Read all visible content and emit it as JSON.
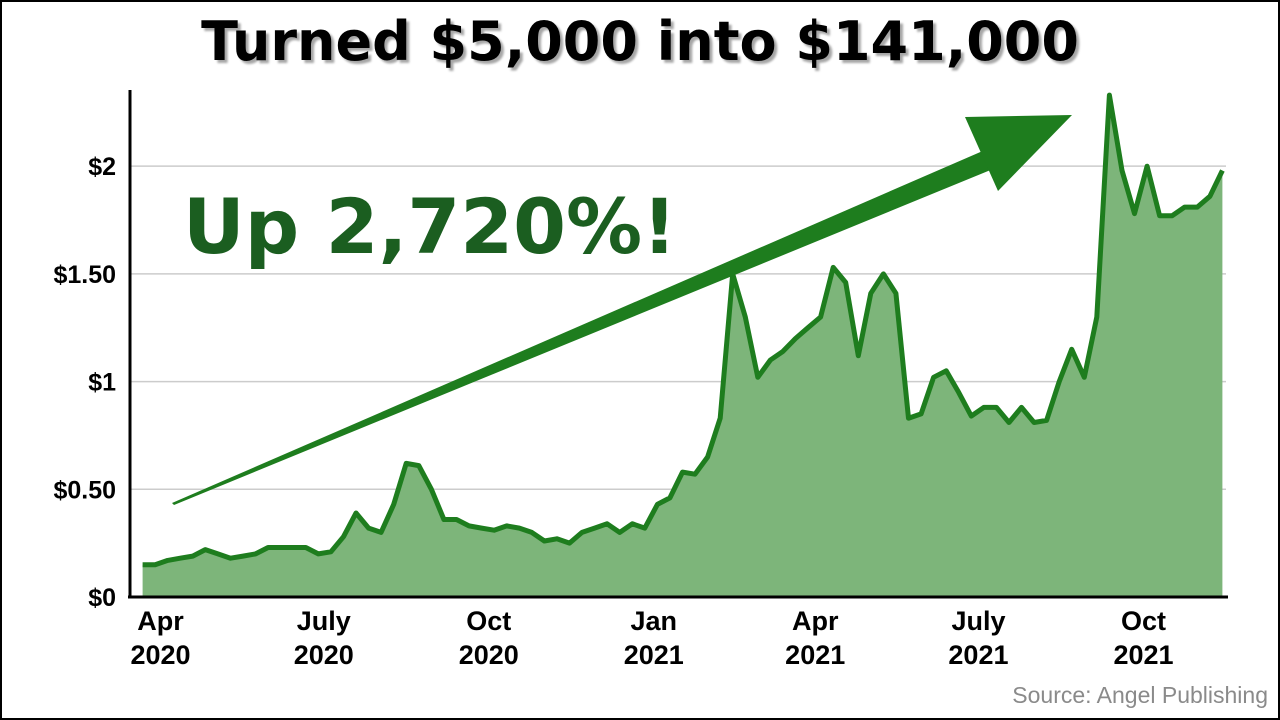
{
  "title": "Turned $5,000 into $141,000",
  "callout": "Up 2,720%!",
  "source": "Source: Angel Publishing",
  "colors": {
    "line": "#1e7d1e",
    "fill": "#7db57a",
    "arrow": "#1e7d1e",
    "callout": "#1b5e20",
    "grid": "#cccccc"
  },
  "chart_data": {
    "type": "area",
    "title": "Turned $5,000 into $141,000",
    "xlabel": "",
    "ylabel": "",
    "grid": true,
    "ylim": [
      0,
      2.4
    ],
    "y_ticks": [
      {
        "value": 0,
        "label": "$0"
      },
      {
        "value": 0.5,
        "label": "$0.50"
      },
      {
        "value": 1,
        "label": "$1"
      },
      {
        "value": 1.5,
        "label": "$1.50"
      },
      {
        "value": 2,
        "label": "$2"
      }
    ],
    "x_ticks": [
      {
        "date": "2020-04-01",
        "line1": "Apr",
        "line2": "2020"
      },
      {
        "date": "2020-07-01",
        "line1": "July",
        "line2": "2020"
      },
      {
        "date": "2020-10-01",
        "line1": "Oct",
        "line2": "2020"
      },
      {
        "date": "2021-01-01",
        "line1": "Jan",
        "line2": "2021"
      },
      {
        "date": "2021-04-01",
        "line1": "Apr",
        "line2": "2021"
      },
      {
        "date": "2021-07-01",
        "line1": "July",
        "line2": "2021"
      },
      {
        "date": "2021-10-01",
        "line1": "Oct",
        "line2": "2021"
      }
    ],
    "x": [
      "2020-03-22",
      "2020-03-29",
      "2020-04-05",
      "2020-04-12",
      "2020-04-19",
      "2020-04-26",
      "2020-05-03",
      "2020-05-10",
      "2020-05-17",
      "2020-05-24",
      "2020-05-31",
      "2020-06-07",
      "2020-06-14",
      "2020-06-21",
      "2020-06-28",
      "2020-07-05",
      "2020-07-12",
      "2020-07-19",
      "2020-07-26",
      "2020-08-02",
      "2020-08-09",
      "2020-08-16",
      "2020-08-23",
      "2020-08-30",
      "2020-09-06",
      "2020-09-13",
      "2020-09-20",
      "2020-09-27",
      "2020-10-04",
      "2020-10-11",
      "2020-10-18",
      "2020-10-25",
      "2020-11-01",
      "2020-11-08",
      "2020-11-15",
      "2020-11-22",
      "2020-11-29",
      "2020-12-06",
      "2020-12-13",
      "2020-12-20",
      "2020-12-27",
      "2021-01-03",
      "2021-01-10",
      "2021-01-17",
      "2021-01-24",
      "2021-01-31",
      "2021-02-07",
      "2021-02-14",
      "2021-02-21",
      "2021-02-28",
      "2021-03-07",
      "2021-03-14",
      "2021-03-21",
      "2021-03-28",
      "2021-04-04",
      "2021-04-11",
      "2021-04-18",
      "2021-04-25",
      "2021-05-02",
      "2021-05-09",
      "2021-05-16",
      "2021-05-23",
      "2021-05-30",
      "2021-06-06",
      "2021-06-13",
      "2021-06-20",
      "2021-06-27",
      "2021-07-04",
      "2021-07-11",
      "2021-07-18",
      "2021-07-25",
      "2021-08-01",
      "2021-08-08",
      "2021-08-15",
      "2021-08-22",
      "2021-08-29",
      "2021-09-05",
      "2021-09-12",
      "2021-09-19",
      "2021-09-26",
      "2021-10-03",
      "2021-10-10",
      "2021-10-17",
      "2021-10-24",
      "2021-10-31",
      "2021-11-07",
      "2021-11-14"
    ],
    "series": [
      {
        "values": [
          0.15,
          0.15,
          0.17,
          0.18,
          0.19,
          0.22,
          0.2,
          0.18,
          0.19,
          0.2,
          0.23,
          0.23,
          0.23,
          0.23,
          0.2,
          0.21,
          0.28,
          0.39,
          0.32,
          0.3,
          0.43,
          0.62,
          0.61,
          0.5,
          0.36,
          0.36,
          0.33,
          0.32,
          0.31,
          0.33,
          0.32,
          0.3,
          0.26,
          0.27,
          0.25,
          0.3,
          0.32,
          0.34,
          0.3,
          0.34,
          0.32,
          0.43,
          0.46,
          0.58,
          0.57,
          0.65,
          0.83,
          1.5,
          1.3,
          1.02,
          1.1,
          1.14,
          1.2,
          1.25,
          1.3,
          1.53,
          1.46,
          1.12,
          1.41,
          1.5,
          1.41,
          0.83,
          0.85,
          1.02,
          1.05,
          0.95,
          0.84,
          0.88,
          0.88,
          0.81,
          0.88,
          0.81,
          0.82,
          1.0,
          1.15,
          1.02,
          1.3,
          2.33,
          1.98,
          1.78,
          2.0,
          1.77,
          1.77,
          1.81,
          1.81,
          1.86,
          1.98
        ]
      }
    ]
  }
}
